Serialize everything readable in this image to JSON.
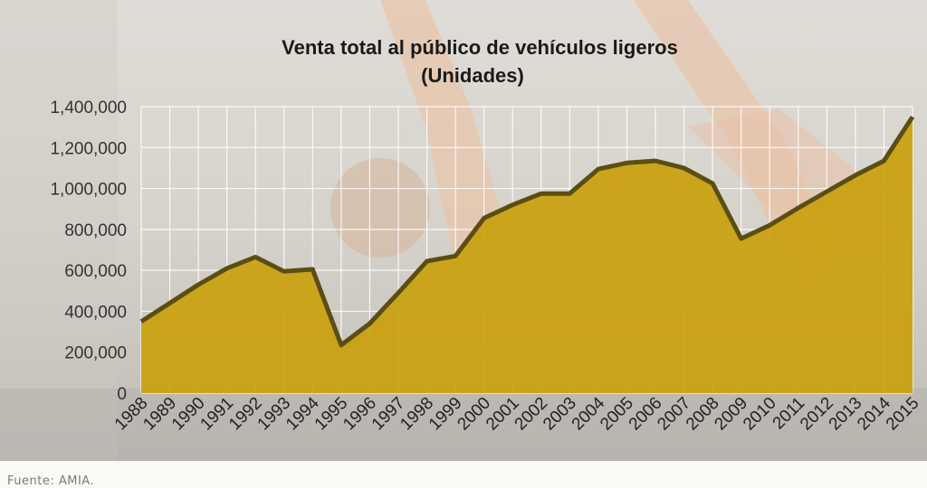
{
  "chart_data": {
    "type": "area",
    "title": "Venta total al público de vehículos ligeros",
    "subtitle": "(Unidades)",
    "xlabel": "",
    "ylabel": "",
    "x": [
      "1988",
      "1989",
      "1990",
      "1991",
      "1992",
      "1993",
      "1994",
      "1995",
      "1996",
      "1997",
      "1998",
      "1999",
      "2000",
      "2001",
      "2002",
      "2003",
      "2004",
      "2005",
      "2006",
      "2007",
      "2008",
      "2009",
      "2010",
      "2011",
      "2012",
      "2013",
      "2014",
      "2015"
    ],
    "values": [
      350000,
      440000,
      530000,
      610000,
      665000,
      595000,
      605000,
      235000,
      340000,
      490000,
      645000,
      670000,
      855000,
      920000,
      975000,
      975000,
      1095000,
      1125000,
      1135000,
      1100000,
      1025000,
      755000,
      820000,
      905000,
      985000,
      1065000,
      1135000,
      1350000
    ],
    "yticks": [
      "0",
      "200,000",
      "400,000",
      "600,000",
      "800,000",
      "1,000,000",
      "1,200,000",
      "1,400,000"
    ],
    "ylim": [
      0,
      1400000
    ],
    "grid": true,
    "colors": {
      "fill": "#c9a00e",
      "line": "#5b4e14"
    }
  },
  "source": "Fuente: AMIA."
}
